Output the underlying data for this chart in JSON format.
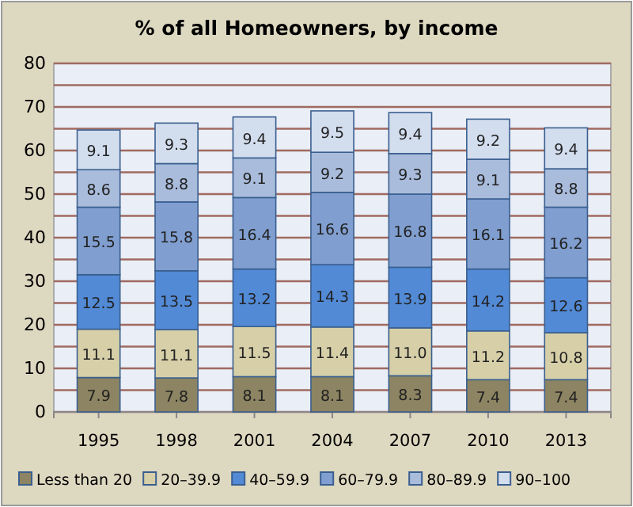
{
  "chart_data": {
    "type": "bar",
    "title": "% of all Homeowners, by income",
    "stacked": true,
    "legend": "bottom",
    "grid": "y",
    "categories": [
      "1995",
      "1998",
      "2001",
      "2004",
      "2007",
      "2010",
      "2013"
    ],
    "ylim": [
      0,
      80
    ],
    "yticks": [
      0,
      {
        "value": 5,
        "label": null
      },
      10,
      {
        "value": 15,
        "label": null
      },
      20,
      {
        "value": 25,
        "label": null
      },
      30,
      {
        "value": 35,
        "label": null
      },
      40,
      {
        "value": 45,
        "label": null
      },
      50,
      {
        "value": 55,
        "label": null
      },
      60,
      {
        "value": 65,
        "label": null
      },
      70,
      {
        "value": 75,
        "label": null
      },
      80
    ],
    "series": [
      {
        "name": "Less than 20",
        "color": "#8c8462",
        "values": [
          7.9,
          7.8,
          8.1,
          8.1,
          8.3,
          7.4,
          7.4
        ],
        "value_labels": [
          "7.9",
          "7.8",
          "8.1",
          "8.1",
          "8.3",
          "7.4",
          "7.4"
        ]
      },
      {
        "name": "20–39.9",
        "color": "#d6cfa8",
        "values": [
          11.1,
          11.1,
          11.5,
          11.4,
          11.0,
          11.2,
          10.8
        ],
        "value_labels": [
          "11.1",
          "11.1",
          "11.5",
          "11.4",
          "11.0",
          "11.2",
          "10.8"
        ]
      },
      {
        "name": "40–59.9",
        "color": "#528ad6",
        "values": [
          12.5,
          13.5,
          13.2,
          14.3,
          13.9,
          14.2,
          12.6
        ],
        "value_labels": [
          "12.5",
          "13.5",
          "13.2",
          "14.3",
          "13.9",
          "14.2",
          "12.6"
        ]
      },
      {
        "name": "60–79.9",
        "color": "#809fd0",
        "values": [
          15.5,
          15.8,
          16.4,
          16.6,
          16.8,
          16.1,
          16.2
        ],
        "value_labels": [
          "15.5",
          "15.8",
          "16.4",
          "16.6",
          "16.8",
          "16.1",
          "16.2"
        ]
      },
      {
        "name": "80–89.9",
        "color": "#a9bcdc",
        "values": [
          8.6,
          8.8,
          9.1,
          9.2,
          9.3,
          9.1,
          8.8
        ],
        "value_labels": [
          "8.6",
          "8.8",
          "9.1",
          "9.2",
          "9.3",
          "9.1",
          "8.8"
        ]
      },
      {
        "name": "90–100",
        "color": "#d2ddee",
        "values": [
          9.1,
          9.3,
          9.4,
          9.5,
          9.4,
          9.2,
          9.4
        ],
        "value_labels": [
          "9.1",
          "9.3",
          "9.4",
          "9.5",
          "9.4",
          "9.2",
          "9.4"
        ]
      }
    ]
  }
}
